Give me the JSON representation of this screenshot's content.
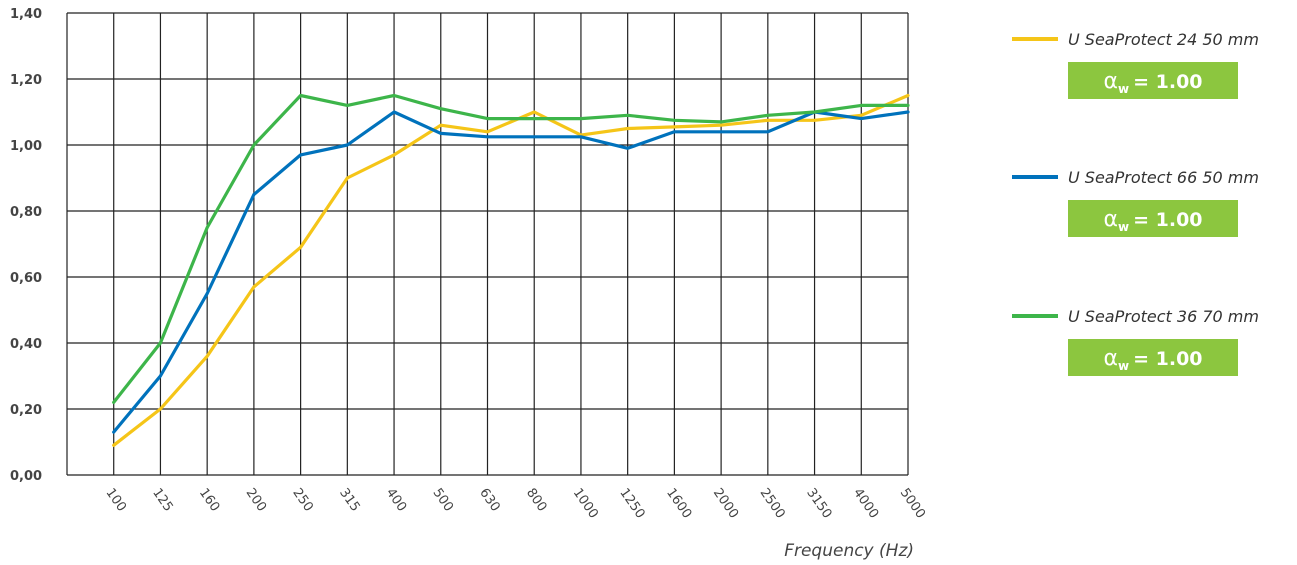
{
  "chart_data": {
    "type": "line",
    "xlabel": "Frequency (Hz)",
    "ylabel": "",
    "ylim": [
      0,
      1.4
    ],
    "yticks": [
      "0,00",
      "0,20",
      "0,40",
      "0,60",
      "0,80",
      "1,00",
      "1,20",
      "1,40"
    ],
    "grid": true,
    "legend_position": "right",
    "categories": [
      "100",
      "125",
      "160",
      "200",
      "250",
      "315",
      "400",
      "500",
      "630",
      "800",
      "1000",
      "1250",
      "1600",
      "2000",
      "2500",
      "3150",
      "4000",
      "5000"
    ],
    "series": [
      {
        "name": "U SeaProtect 24 50 mm",
        "color": "#f5c518",
        "badge_symbol": "α",
        "badge_sub": "w",
        "badge_value": "= 1.00",
        "values": [
          0.09,
          0.2,
          0.36,
          0.57,
          0.69,
          0.9,
          0.97,
          1.06,
          1.04,
          1.1,
          1.03,
          1.05,
          1.055,
          1.06,
          1.075,
          1.075,
          1.09,
          1.15
        ]
      },
      {
        "name": "U SeaProtect 66 50 mm",
        "color": "#0072bc",
        "badge_symbol": "α",
        "badge_sub": "w",
        "badge_value": "= 1.00",
        "values": [
          0.13,
          0.3,
          0.55,
          0.85,
          0.97,
          1.0,
          1.1,
          1.035,
          1.025,
          1.025,
          1.025,
          0.99,
          1.04,
          1.04,
          1.04,
          1.1,
          1.08,
          1.1
        ]
      },
      {
        "name": "U SeaProtect 36 70 mm",
        "color": "#3db54a",
        "badge_symbol": "α",
        "badge_sub": "w",
        "badge_value": "= 1.00",
        "values": [
          0.22,
          0.4,
          0.75,
          1.0,
          1.15,
          1.12,
          1.15,
          1.11,
          1.08,
          1.08,
          1.08,
          1.09,
          1.075,
          1.07,
          1.09,
          1.1,
          1.12,
          1.12
        ]
      }
    ],
    "badge_color": "#8cc63f"
  }
}
